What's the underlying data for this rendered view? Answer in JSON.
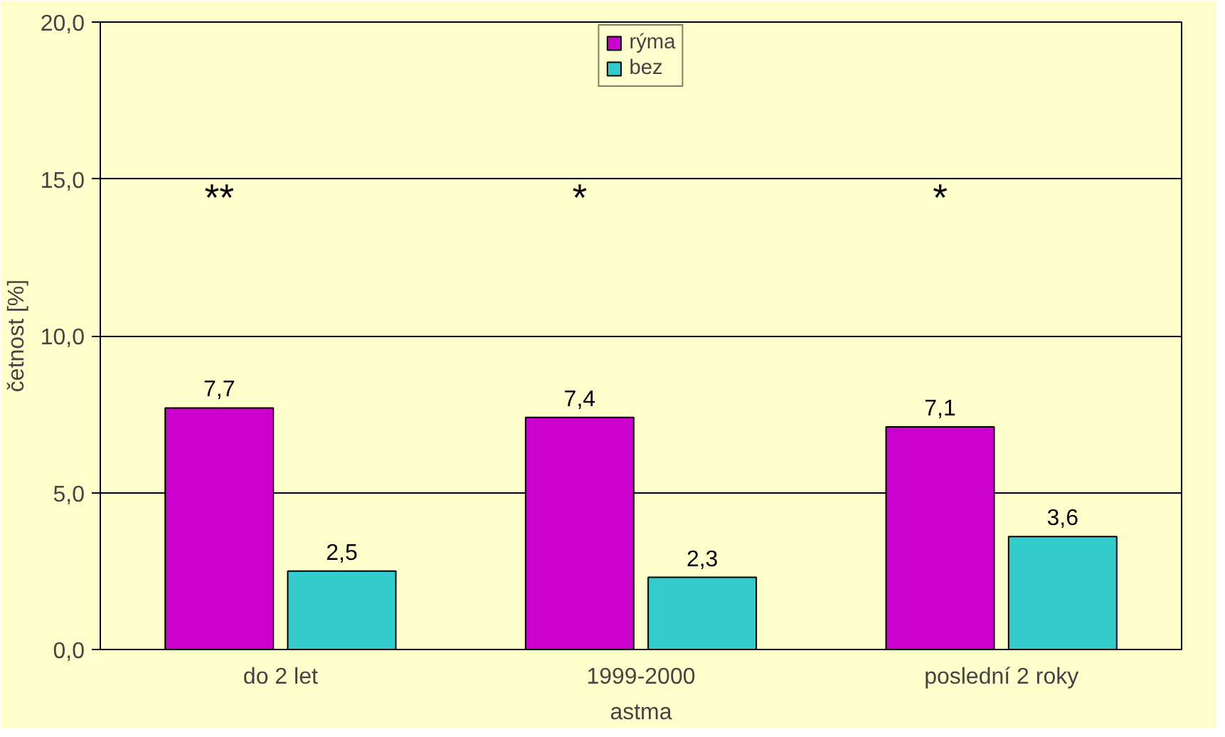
{
  "chart_data": {
    "type": "bar",
    "xlabel": "astma",
    "ylabel": "četnost [%]",
    "categories": [
      "do 2 let",
      "1999-2000",
      "poslední 2 roky"
    ],
    "series": [
      {
        "name": "rýma",
        "color": "#cc00cc",
        "values": [
          7.7,
          7.4,
          7.1
        ],
        "value_labels": [
          "7,7",
          "7,4",
          "7,1"
        ]
      },
      {
        "name": "bez",
        "color": "#33cccc",
        "values": [
          2.5,
          2.3,
          3.6
        ],
        "value_labels": [
          "2,5",
          "2,3",
          "3,6"
        ]
      }
    ],
    "ylim": [
      0,
      20
    ],
    "yticks": [
      {
        "value": 0,
        "label": "0,0"
      },
      {
        "value": 5,
        "label": "5,0"
      },
      {
        "value": 10,
        "label": "10,0"
      },
      {
        "value": 15,
        "label": "15,0"
      },
      {
        "value": 20,
        "label": "20,0"
      }
    ],
    "grid": "y",
    "legend": "top",
    "annotations": [
      "**",
      "*",
      "*"
    ]
  }
}
